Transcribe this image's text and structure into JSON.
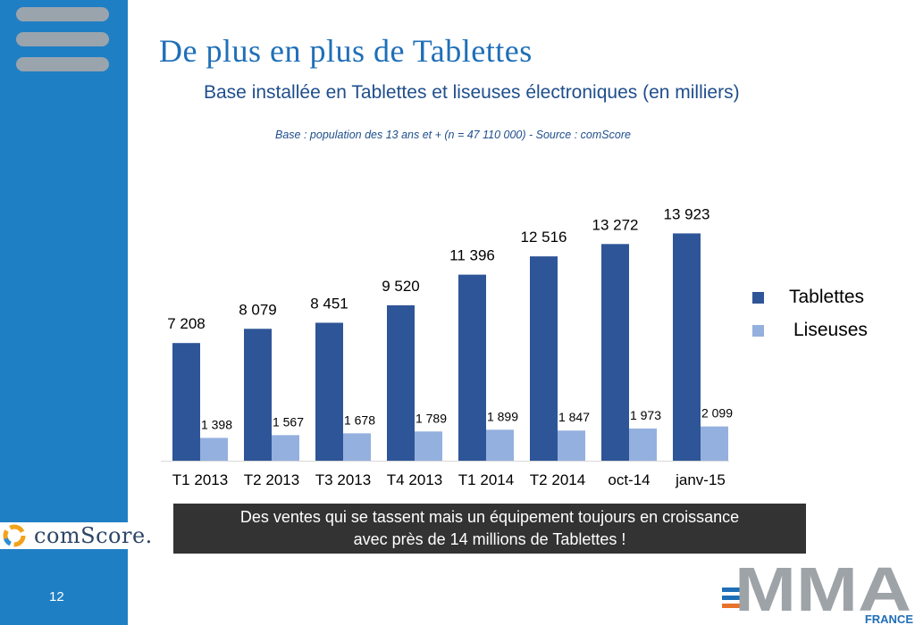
{
  "slide": {
    "title": "De plus en plus de Tablettes",
    "subtitle": "Base installée en Tablettes et liseuses électroniques (en milliers)",
    "base_note": "Base : population des 13 ans et + (n = 47 110 000)  - Source : comScore",
    "callout_line1": "Des ventes qui se tassent mais un équipement toujours en croissance",
    "callout_line2": "avec près de 14 millions de Tablettes !",
    "page_number": "12",
    "comscore_logo": "comScore.",
    "mma_logo": "MMA",
    "mma_sub": "FRANCE"
  },
  "colors": {
    "sidebar": "#1f7fc4",
    "title": "#1f6fb7",
    "tablettes": "#2e5597",
    "liseuses": "#94b0df",
    "callout_bg": "#333333",
    "mma_grey": "#9ea3a8",
    "mma_blue": "#1f6fb7",
    "mma_orange": "#e8722b"
  },
  "chart_data": {
    "type": "bar",
    "categories": [
      "T1 2013",
      "T2 2013",
      "T3 2013",
      "T4 2013",
      "T1 2014",
      "T2 2014",
      "oct-14",
      "janv-15"
    ],
    "series": [
      {
        "name": "Tablettes",
        "values": [
          7208,
          8079,
          8451,
          9520,
          11396,
          12516,
          13272,
          13923
        ],
        "labels": [
          "7 208",
          "8 079",
          "8 451",
          "9 520",
          "11 396",
          "12 516",
          "13 272",
          "13 923"
        ]
      },
      {
        "name": "Liseuses",
        "values": [
          1398,
          1567,
          1678,
          1789,
          1899,
          1847,
          1973,
          2099
        ],
        "labels": [
          "1 398",
          "1 567",
          "1 678",
          "1 789",
          "1 899",
          "1 847",
          "1 973",
          "2 099"
        ]
      }
    ],
    "ylim": [
      0,
      14000
    ],
    "legend": "right",
    "grid": false
  }
}
